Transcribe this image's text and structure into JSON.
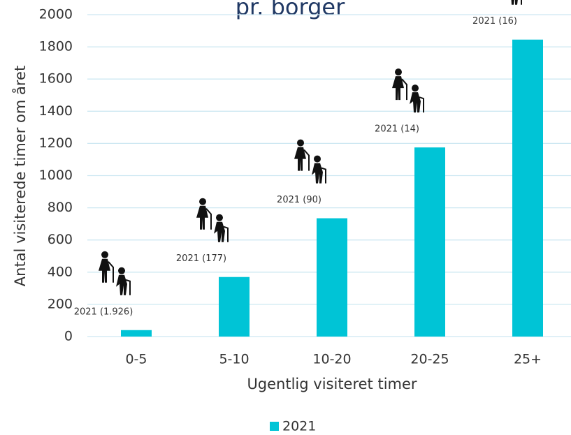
{
  "chart_data": {
    "type": "bar",
    "title": "pr. borger",
    "x_label": "Ugentlig visiteret timer",
    "y_label": "Antal visiterede timer om året",
    "categories": [
      "0-5",
      "5-10",
      "10-20",
      "20-25",
      "25+"
    ],
    "series": [
      {
        "name": "2021",
        "color": "#00c4d6",
        "values": [
          40,
          370,
          735,
          1175,
          1845
        ]
      }
    ],
    "annotations": [
      "2021 (1.926)",
      "2021 (177)",
      "2021 (90)",
      "2021 (14)",
      "2021 (16)"
    ],
    "ylim": [
      0,
      2000
    ],
    "yticks": [
      0,
      200,
      400,
      600,
      800,
      1000,
      1200,
      1400,
      1600,
      1800,
      2000
    ],
    "grid": true,
    "legend": "bottom"
  }
}
